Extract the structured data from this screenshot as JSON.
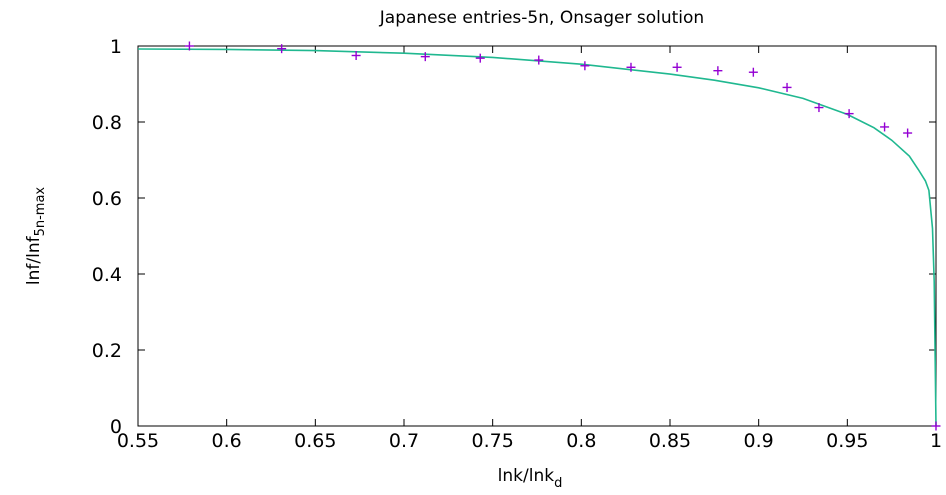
{
  "chart_data": {
    "type": "line",
    "title": "Japanese entries-5n, Onsager solution",
    "xlabel": {
      "main": "lnk/lnk",
      "sub": "d"
    },
    "ylabel": {
      "main": "lnf/lnf",
      "sub": "5n-max"
    },
    "xlim": [
      0.55,
      1.0
    ],
    "ylim": [
      0,
      1.0
    ],
    "x_ticks": [
      "0.55",
      "0.6",
      "0.65",
      "0.7",
      "0.75",
      "0.8",
      "0.85",
      "0.9",
      "0.95",
      "1"
    ],
    "y_ticks": [
      "0",
      "0.2",
      "0.4",
      "0.6",
      "0.8",
      "1"
    ],
    "grid": false,
    "legend": "none",
    "series": [
      {
        "kind": "points",
        "marker": "plus",
        "color": "#9400d3",
        "x": [
          0.579,
          0.631,
          0.673,
          0.712,
          0.743,
          0.776,
          0.802,
          0.828,
          0.854,
          0.877,
          0.897,
          0.916,
          0.934,
          0.951,
          0.971,
          0.984,
          1.0
        ],
        "y": [
          1.0,
          0.993,
          0.975,
          0.972,
          0.968,
          0.963,
          0.948,
          0.944,
          0.944,
          0.935,
          0.931,
          0.891,
          0.838,
          0.822,
          0.787,
          0.771,
          0.0
        ]
      },
      {
        "kind": "line",
        "color": "#20b890",
        "x": [
          0.55,
          0.6,
          0.65,
          0.7,
          0.75,
          0.8,
          0.85,
          0.875,
          0.9,
          0.925,
          0.95,
          0.965,
          0.975,
          0.985,
          0.99,
          0.994,
          0.996,
          0.998,
          0.999,
          1.0
        ],
        "y": [
          0.992,
          0.991,
          0.988,
          0.981,
          0.97,
          0.952,
          0.926,
          0.91,
          0.89,
          0.862,
          0.82,
          0.785,
          0.752,
          0.71,
          0.675,
          0.645,
          0.62,
          0.52,
          0.38,
          0.0
        ]
      }
    ]
  }
}
